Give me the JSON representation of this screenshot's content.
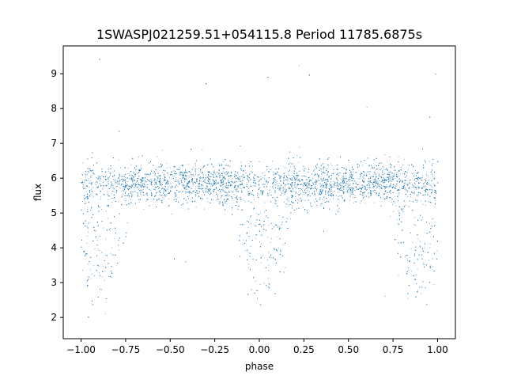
{
  "chart_data": {
    "type": "scatter",
    "title": "1SWASPJ021259.51+054115.8 Period 11785.6875s",
    "xlabel": "phase",
    "ylabel": "flux",
    "xlim": [
      -1.1,
      1.1
    ],
    "ylim": [
      1.39,
      9.8
    ],
    "xticks": [
      -1.0,
      -0.75,
      -0.5,
      -0.25,
      0.0,
      0.25,
      0.5,
      0.75,
      1.0
    ],
    "xtick_labels": [
      "−1.00",
      "−0.75",
      "−0.50",
      "−0.25",
      "0.00",
      "0.25",
      "0.50",
      "0.75",
      "1.00"
    ],
    "yticks": [
      2,
      3,
      4,
      5,
      6,
      7,
      8,
      9
    ],
    "ytick_labels": [
      "2",
      "3",
      "4",
      "5",
      "6",
      "7",
      "8",
      "9"
    ],
    "grid": false,
    "marker_color": "#1f77b4",
    "phase_range": [
      -1.0,
      1.0
    ],
    "baseline_flux": 5.85,
    "baseline_scatter": 0.3,
    "dip_centers_phase": [
      -0.9,
      0.02,
      0.9
    ],
    "dip_half_width_phase": 0.2,
    "dip_min_flux": 2.7
  }
}
